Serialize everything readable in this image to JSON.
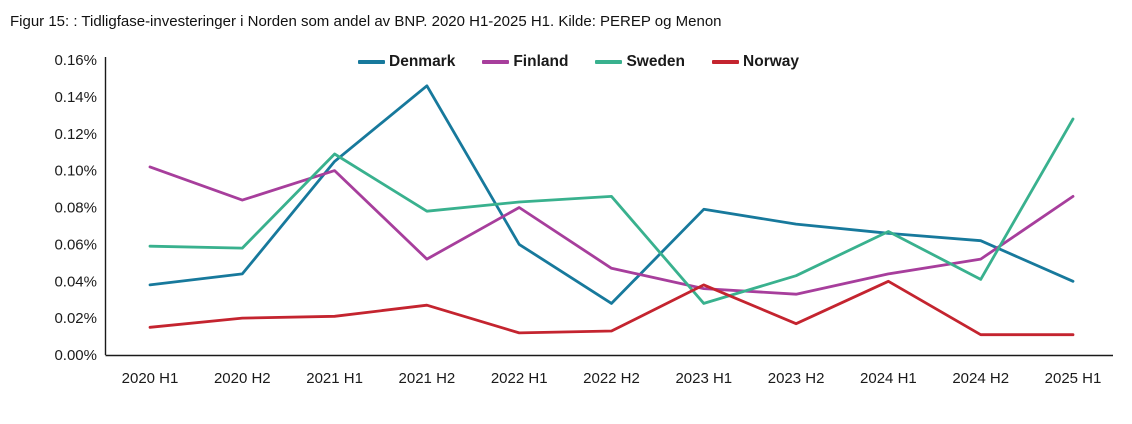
{
  "figure": {
    "title": "Figur 15: : Tidligfase-investeringer i Norden som andel av BNP. 2020 H1-2025 H1. Kilde: PEREP og Menon"
  },
  "chart_data": {
    "type": "line",
    "title": "Figur 15: : Tidligfase-investeringer i Norden som andel av BNP. 2020 H1-2025 H1. Kilde: PEREP og Menon",
    "categories": [
      "2020 H1",
      "2020 H2",
      "2021 H1",
      "2021 H2",
      "2022 H1",
      "2022 H2",
      "2023 H1",
      "2023 H2",
      "2024 H1",
      "2024 H2",
      "2025 H1"
    ],
    "series": [
      {
        "name": "Denmark",
        "color": "#17799C",
        "values": [
          0.038,
          0.044,
          0.105,
          0.146,
          0.06,
          0.028,
          0.079,
          0.071,
          0.066,
          0.062,
          0.04
        ]
      },
      {
        "name": "Finland",
        "color": "#A73E9C",
        "values": [
          0.102,
          0.084,
          0.1,
          0.052,
          0.08,
          0.047,
          0.036,
          0.033,
          0.044,
          0.052,
          0.086
        ]
      },
      {
        "name": "Sweden",
        "color": "#39B18E",
        "values": [
          0.059,
          0.058,
          0.109,
          0.078,
          0.083,
          0.086,
          0.028,
          0.043,
          0.067,
          0.041,
          0.128
        ]
      },
      {
        "name": "Norway",
        "color": "#C4242F",
        "values": [
          0.015,
          0.02,
          0.021,
          0.027,
          0.012,
          0.013,
          0.038,
          0.017,
          0.04,
          0.011,
          0.011
        ]
      }
    ],
    "ylabel": "",
    "xlabel": "",
    "ylim": [
      0,
      0.16
    ],
    "ytick_step": 0.02,
    "y_tick_labels": [
      "0.00%",
      "0.02%",
      "0.04%",
      "0.06%",
      "0.08%",
      "0.10%",
      "0.12%",
      "0.14%",
      "0.16%"
    ],
    "legend_position": "top",
    "grid": false,
    "axis_color": "#1a1a1a"
  }
}
